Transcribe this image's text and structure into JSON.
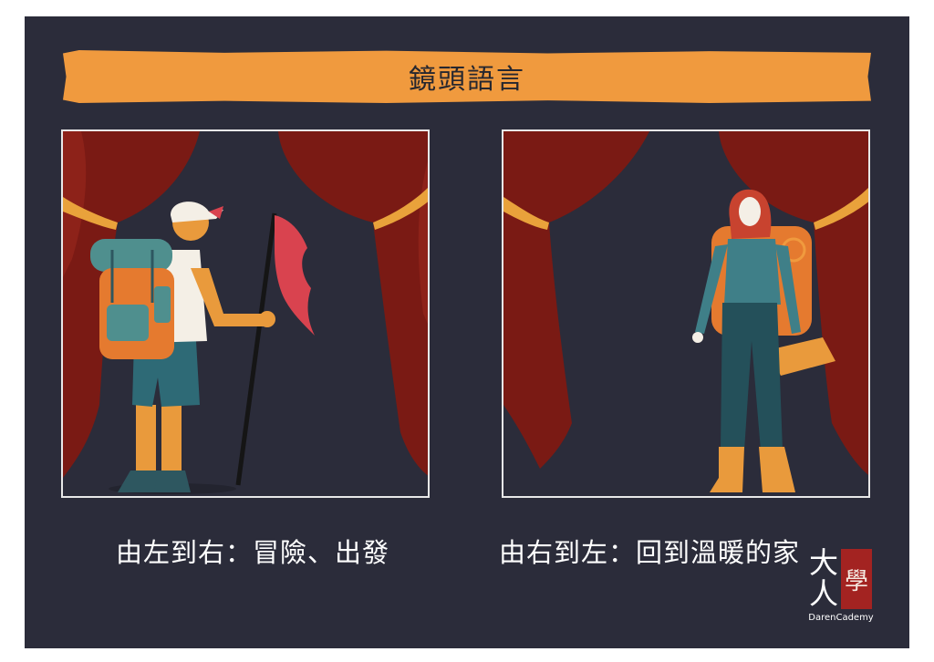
{
  "title": "鏡頭語言",
  "panels": [
    {
      "caption": "由左到右：冒險、出發"
    },
    {
      "caption": "由右到左：回到溫暖的家"
    }
  ],
  "logo": {
    "big_char_1": "大",
    "big_char_2": "人",
    "red_char": "學",
    "brand": "DarenCademy"
  },
  "colors": {
    "background": "#2b2c3a",
    "banner": "#f09a3e",
    "curtain": "#7a1a14",
    "curtain_tie": "#e9a23b",
    "flag": "#d9434f",
    "backpack": "#4f8f8e",
    "logo_red": "#a32321"
  }
}
